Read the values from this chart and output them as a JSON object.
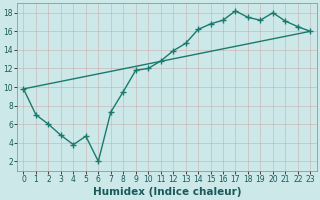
{
  "xlabel": "Humidex (Indice chaleur)",
  "line1_x": [
    0,
    1,
    2,
    3,
    4,
    5,
    6,
    7,
    8,
    9,
    10,
    11,
    12,
    13,
    14,
    15,
    16,
    17,
    18,
    19,
    20,
    21,
    22,
    23
  ],
  "line1_y": [
    9.8,
    7.0,
    6.0,
    4.8,
    3.8,
    4.7,
    2.0,
    7.3,
    9.5,
    11.8,
    12.0,
    12.8,
    13.9,
    14.7,
    16.2,
    16.8,
    17.2,
    18.2,
    17.5,
    17.2,
    18.0,
    17.1,
    16.5,
    16.0
  ],
  "line2_x": [
    0,
    23
  ],
  "line2_y": [
    9.8,
    16.0
  ],
  "line_color": "#1a7a6e",
  "marker": "+",
  "marker_size": 4,
  "bg_color": "#cce8e8",
  "grid_color": "#b8d8d8",
  "xlim": [
    -0.5,
    23.5
  ],
  "ylim": [
    1,
    19
  ],
  "xticks": [
    0,
    1,
    2,
    3,
    4,
    5,
    6,
    7,
    8,
    9,
    10,
    11,
    12,
    13,
    14,
    15,
    16,
    17,
    18,
    19,
    20,
    21,
    22,
    23
  ],
  "yticks": [
    2,
    4,
    6,
    8,
    10,
    12,
    14,
    16,
    18
  ],
  "tick_fontsize": 5.5,
  "xlabel_fontsize": 7.5,
  "lw": 1.0
}
